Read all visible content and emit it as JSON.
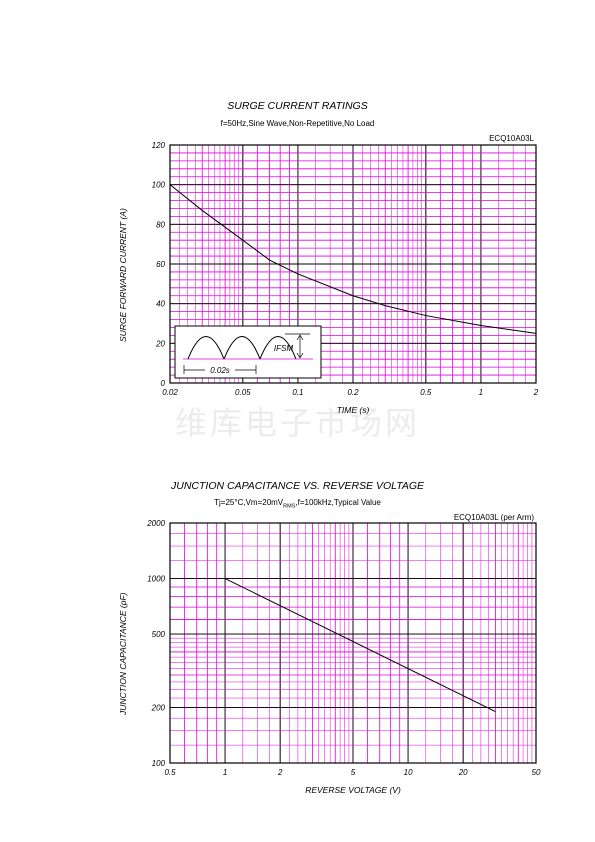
{
  "watermark": "维库电子市场网",
  "chart_data": [
    {
      "type": "line",
      "title": "SURGE CURRENT RATINGS",
      "subtitle": "f=50Hz,Sine Wave,Non-Repetitive,No Load",
      "part_number": "ECQ10A03L",
      "xlabel": "TIME (s)",
      "ylabel": "SURGE FORWARD CURRENT (A)",
      "x_scale": "log",
      "xlim": [
        0.02,
        2
      ],
      "ylim": [
        0,
        120
      ],
      "x_ticks": [
        "0.02",
        "0.05",
        "0.1",
        "0.2",
        "0.5",
        "1",
        "2"
      ],
      "y_ticks": [
        "0",
        "20",
        "40",
        "60",
        "80",
        "100",
        "120"
      ],
      "grid": true,
      "grid_color": "#e000e0",
      "series": [
        {
          "x": [
            0.02,
            0.03,
            0.05,
            0.07,
            0.1,
            0.2,
            0.3,
            0.5,
            1,
            2
          ],
          "y": [
            100,
            87,
            72,
            62,
            55,
            44,
            39,
            34,
            29,
            25
          ]
        }
      ],
      "inset": {
        "period_label": "0.02s",
        "amplitude_label": "IFSM"
      }
    },
    {
      "type": "line",
      "title": "JUNCTION CAPACITANCE VS. REVERSE VOLTAGE",
      "subtitle": "Tj=25°C,Vm=20mVRMS,f=100kHz,Typical Value",
      "subtitle_parts": {
        "before": "Tj=25°C,Vm=20mV",
        "sub": "RMS",
        "after": ",f=100kHz,Typical Value"
      },
      "part_number": "ECQ10A03L (per Arm)",
      "xlabel": "REVERSE VOLTAGE (V)",
      "ylabel": "JUNCTION CAPACITANCE (pF)",
      "x_scale": "log",
      "y_scale": "log",
      "xlim": [
        0.5,
        50
      ],
      "ylim": [
        100,
        2000
      ],
      "x_ticks": [
        "0.5",
        "1",
        "2",
        "5",
        "10",
        "20",
        "50"
      ],
      "y_ticks": [
        "100",
        "200",
        "500",
        "1000",
        "2000"
      ],
      "grid": true,
      "grid_color": "#e000e0",
      "series": [
        {
          "x": [
            1,
            30
          ],
          "y": [
            1000,
            190
          ]
        }
      ]
    }
  ]
}
